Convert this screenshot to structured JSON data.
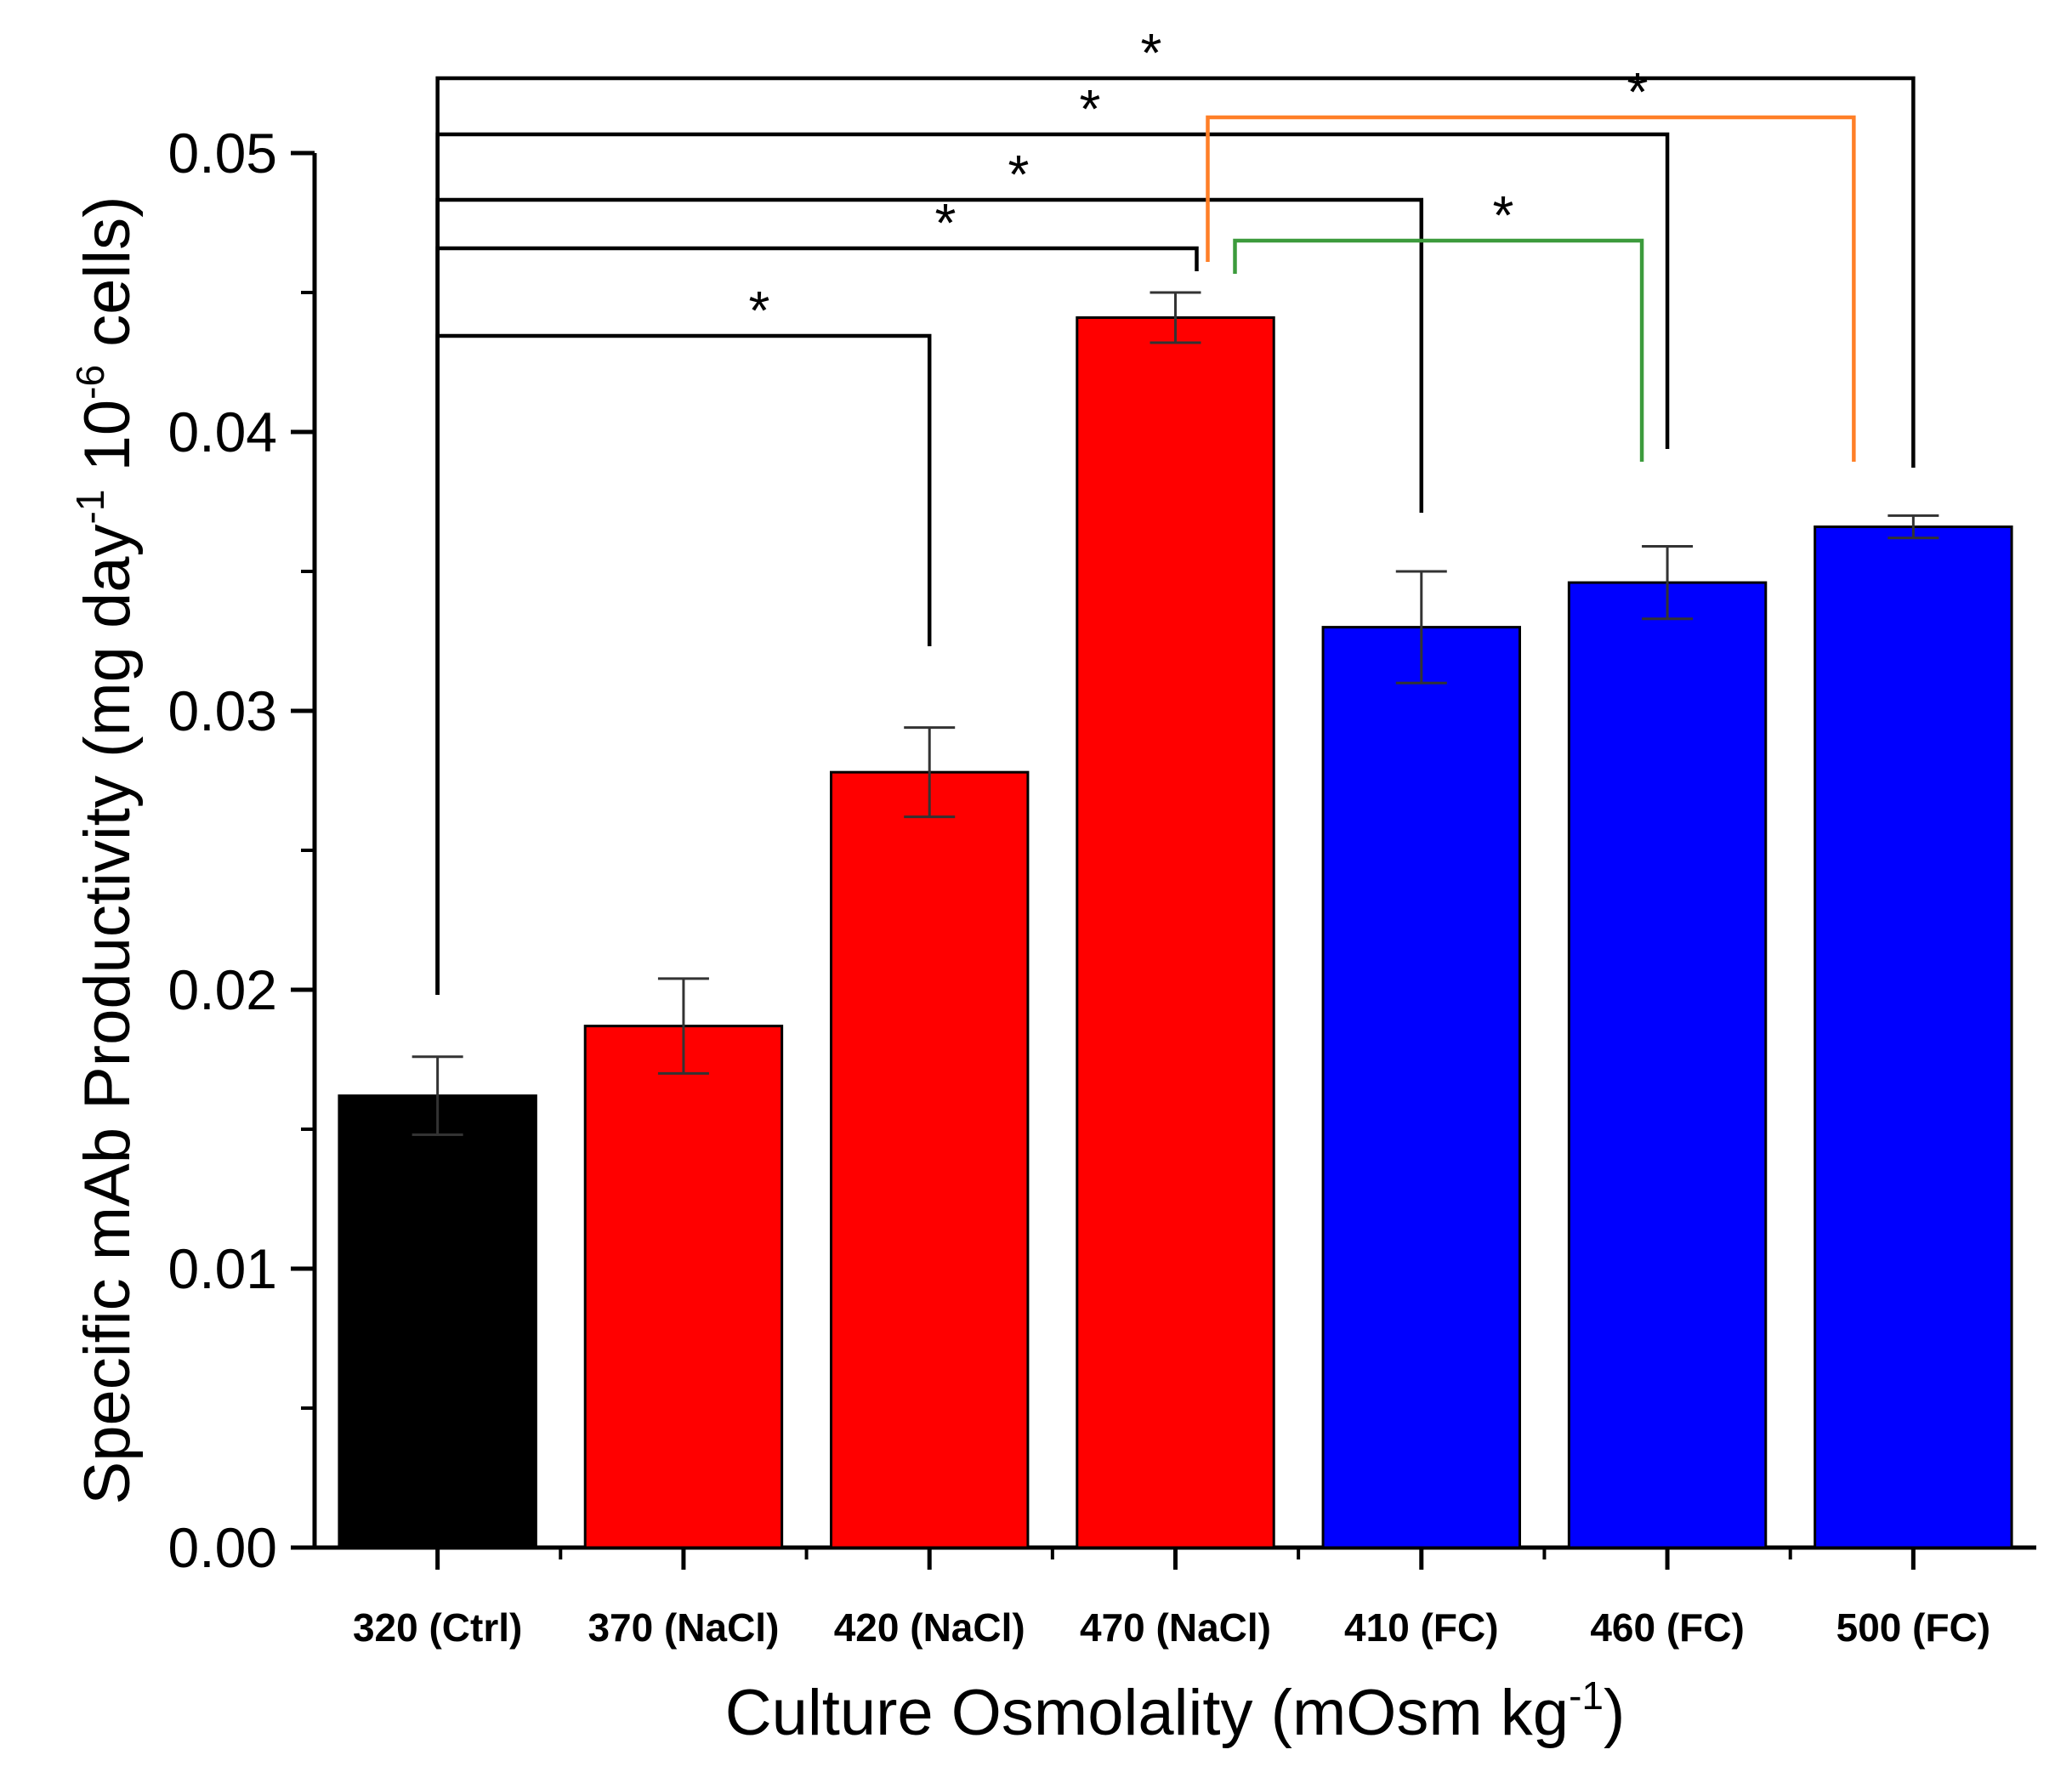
{
  "chart_data": {
    "type": "bar",
    "title": "",
    "xlabel": {
      "main": "Culture Osmolality (mOsm kg",
      "sup": "-1",
      "end": ")"
    },
    "ylabel": {
      "part1": "Specific mAb Productivity (mg day",
      "sup1": "-1",
      "part2": " 10",
      "sup2": "-6",
      "part3": " cells)"
    },
    "ylim": [
      0,
      0.05
    ],
    "yticks": [
      "0.00",
      "0.01",
      "0.02",
      "0.03",
      "0.04",
      "0.05"
    ],
    "categories": [
      "320 (Ctrl)",
      "370 (NaCl)",
      "420 (NaCl)",
      "470 (NaCl)",
      "410 (FC)",
      "460 (FC)",
      "500 (FC)"
    ],
    "values": [
      0.0162,
      0.0187,
      0.0278,
      0.0441,
      0.033,
      0.0346,
      0.0366
    ],
    "errors": [
      0.0014,
      0.0017,
      0.0016,
      0.0009,
      0.002,
      0.0013,
      0.0004
    ],
    "bar_colors": [
      "#000000",
      "#ff0000",
      "#ff0000",
      "#ff0000",
      "#0000ff",
      "#0000ff",
      "#0000ff"
    ],
    "significance": [
      {
        "from": 0,
        "to": 2,
        "label": "*",
        "color": "#000000"
      },
      {
        "from": 0,
        "to": 3,
        "label": "*",
        "color": "#000000"
      },
      {
        "from": 0,
        "to": 4,
        "label": "*",
        "color": "#000000"
      },
      {
        "from": 0,
        "to": 5,
        "label": "*",
        "color": "#000000"
      },
      {
        "from": 0,
        "to": 6,
        "label": "*",
        "color": "#000000"
      },
      {
        "from": 3,
        "to": 5,
        "label": "*",
        "color": "#3c9b3c"
      },
      {
        "from": 3,
        "to": 6,
        "label": "*",
        "color": "#ff7f27"
      }
    ]
  }
}
